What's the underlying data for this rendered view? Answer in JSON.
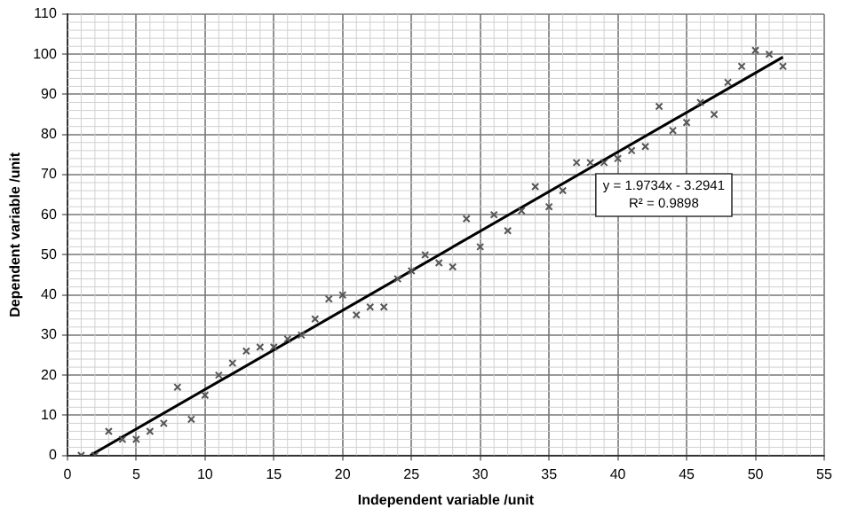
{
  "chart_data": {
    "type": "scatter",
    "xlabel": "Independent variable /unit",
    "ylabel": "Dependent variable /unit",
    "xlim": [
      0,
      55
    ],
    "xticks": [
      0,
      5,
      10,
      15,
      20,
      25,
      30,
      35,
      40,
      45,
      50,
      55
    ],
    "ylim": [
      0,
      110
    ],
    "yticks": [
      0,
      10,
      20,
      30,
      40,
      50,
      60,
      70,
      80,
      90,
      100,
      110
    ],
    "grid": true,
    "legend": false,
    "marker": "cross",
    "series": [
      {
        "color": "#555555",
        "x": [
          1,
          2,
          3,
          4,
          5,
          6,
          7,
          8,
          9,
          10,
          11,
          12,
          13,
          14,
          15,
          16,
          17,
          18,
          19,
          20,
          21,
          22,
          23,
          24,
          25,
          26,
          27,
          28,
          29,
          30,
          31,
          32,
          33,
          34,
          35,
          36,
          37,
          38,
          39,
          40,
          41,
          42,
          43,
          44,
          45,
          46,
          47,
          48,
          49,
          50,
          51,
          52
        ],
        "values": [
          0,
          0,
          6,
          4,
          4,
          6,
          8,
          17,
          9,
          15,
          20,
          23,
          26,
          27,
          27,
          29,
          30,
          34,
          39,
          40,
          35,
          37,
          37,
          44,
          46,
          50,
          48,
          47,
          59,
          52,
          60,
          56,
          61,
          67,
          62,
          66,
          73,
          73,
          73,
          74,
          76,
          77,
          87,
          81,
          83,
          88,
          85,
          93,
          97,
          101,
          100,
          97
        ]
      },
      {
        "type": "line",
        "color": "#000000",
        "marker": "none",
        "x": [
          1.67,
          52
        ],
        "values": [
          0,
          99.3
        ]
      }
    ],
    "annotations": [
      "y = 1.9734x - 3.2941",
      "R² = 0.9898"
    ]
  }
}
